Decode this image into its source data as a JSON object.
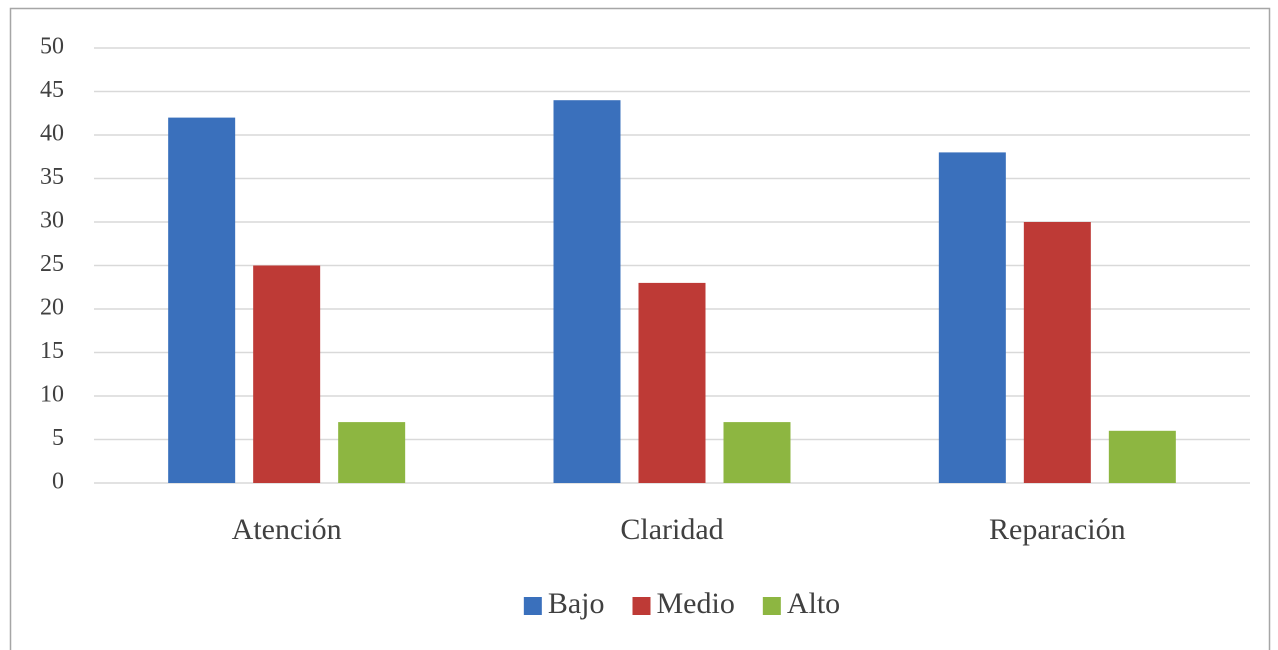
{
  "chart_data": {
    "type": "bar",
    "categories": [
      "Atención",
      "Claridad",
      "Reparación"
    ],
    "series": [
      {
        "name": "Bajo",
        "color": "#3a70bc",
        "values": [
          42,
          44,
          38
        ]
      },
      {
        "name": "Medio",
        "color": "#be3a36",
        "values": [
          25,
          23,
          30
        ]
      },
      {
        "name": "Alto",
        "color": "#8db641",
        "values": [
          7,
          7,
          6
        ]
      }
    ],
    "ylim": [
      0,
      50
    ],
    "yticks": [
      0,
      5,
      10,
      15,
      20,
      25,
      30,
      35,
      40,
      45,
      50
    ],
    "grid": true,
    "legend": "bottom"
  }
}
